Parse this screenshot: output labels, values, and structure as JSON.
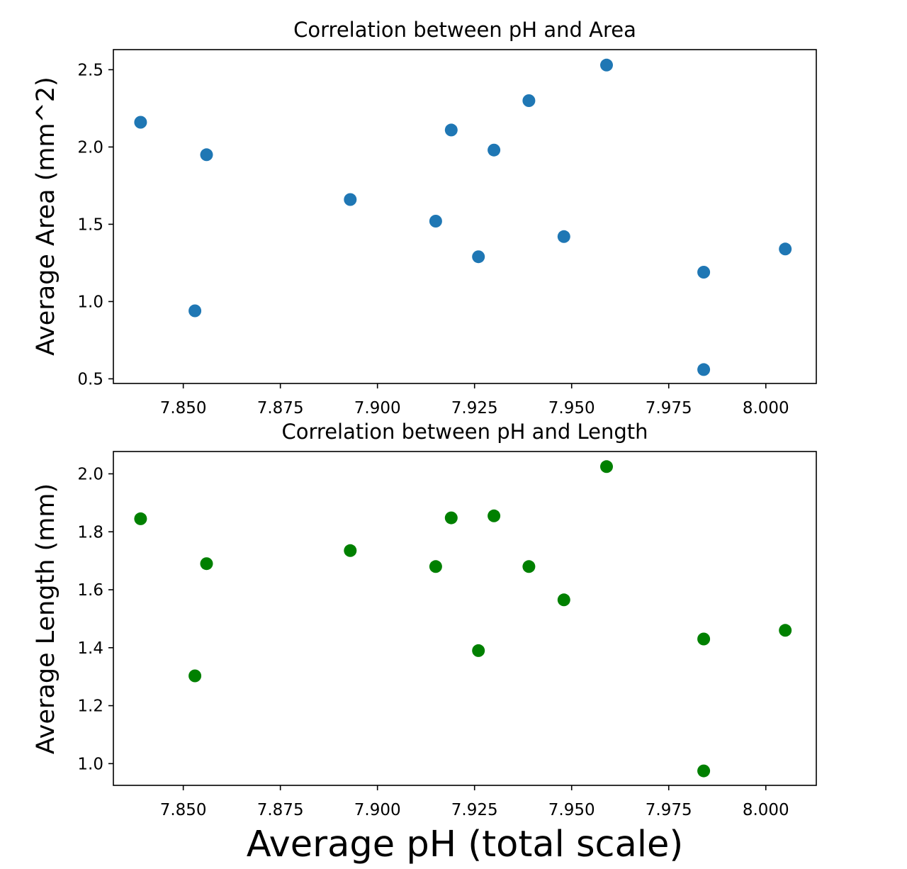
{
  "chart_data": [
    {
      "type": "scatter",
      "title": "Correlation between pH and Area",
      "xlabel": "",
      "ylabel": "Average Area (mm^2)",
      "xlim": [
        7.832,
        8.013
      ],
      "ylim": [
        0.47,
        2.63
      ],
      "xticks": [
        7.85,
        7.875,
        7.9,
        7.925,
        7.95,
        7.975,
        8.0
      ],
      "xtick_labels": [
        "7.850",
        "7.875",
        "7.900",
        "7.925",
        "7.950",
        "7.975",
        "8.000"
      ],
      "yticks": [
        0.5,
        1.0,
        1.5,
        2.0,
        2.5
      ],
      "ytick_labels": [
        "0.5",
        "1.0",
        "1.5",
        "2.0",
        "2.5"
      ],
      "color": "#1f77b4",
      "grid": false,
      "x": [
        7.839,
        7.853,
        7.856,
        7.893,
        7.915,
        7.919,
        7.926,
        7.93,
        7.939,
        7.948,
        7.959,
        7.984,
        7.984,
        8.005
      ],
      "y": [
        2.16,
        0.94,
        1.95,
        1.66,
        1.52,
        2.11,
        1.29,
        1.98,
        2.3,
        1.42,
        2.53,
        1.19,
        0.56,
        1.34
      ]
    },
    {
      "type": "scatter",
      "title": "Correlation between pH and Length",
      "xlabel": "Average pH (total scale)",
      "ylabel": "Average Length (mm)",
      "xlim": [
        7.832,
        8.013
      ],
      "ylim": [
        0.925,
        2.077
      ],
      "xticks": [
        7.85,
        7.875,
        7.9,
        7.925,
        7.95,
        7.975,
        8.0
      ],
      "xtick_labels": [
        "7.850",
        "7.875",
        "7.900",
        "7.925",
        "7.950",
        "7.975",
        "8.000"
      ],
      "yticks": [
        1.0,
        1.2,
        1.4,
        1.6,
        1.8,
        2.0
      ],
      "ytick_labels": [
        "1.0",
        "1.2",
        "1.4",
        "1.6",
        "1.8",
        "2.0"
      ],
      "color": "#008000",
      "grid": false,
      "x": [
        7.839,
        7.853,
        7.856,
        7.893,
        7.915,
        7.919,
        7.926,
        7.93,
        7.939,
        7.948,
        7.959,
        7.984,
        7.984,
        8.005
      ],
      "y": [
        1.845,
        1.303,
        1.69,
        1.735,
        1.68,
        1.848,
        1.39,
        1.855,
        1.68,
        1.565,
        2.025,
        1.43,
        0.975,
        1.46
      ]
    }
  ]
}
